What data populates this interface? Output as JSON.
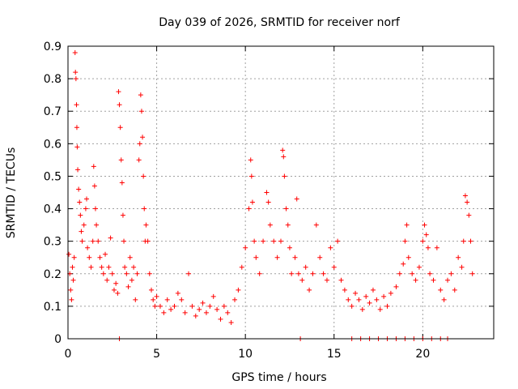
{
  "chart_data": {
    "type": "scatter",
    "title": "Day 039 of 2026, SRMTID for receiver norf",
    "xlabel": "GPS time / hours",
    "ylabel": "SRMTID / TECUs",
    "xlim": [
      0,
      24
    ],
    "ylim": [
      0,
      0.9
    ],
    "xticks": [
      0,
      5,
      10,
      15,
      20
    ],
    "yticks": [
      0,
      0.1,
      0.2,
      0.3,
      0.4,
      0.5,
      0.6,
      0.7,
      0.8,
      0.9
    ],
    "grid": true,
    "marker": "+",
    "colors": {
      "series": "#ff0000",
      "grid": "#a0a0a0",
      "axis": "#000000"
    },
    "series": [
      {
        "name": "SRMTID",
        "points": [
          [
            0.05,
            0.26
          ],
          [
            0.1,
            0.2
          ],
          [
            0.15,
            0.15
          ],
          [
            0.2,
            0.12
          ],
          [
            0.25,
            0.22
          ],
          [
            0.3,
            0.18
          ],
          [
            0.35,
            0.25
          ],
          [
            0.4,
            0.88
          ],
          [
            0.42,
            0.82
          ],
          [
            0.45,
            0.8
          ],
          [
            0.48,
            0.72
          ],
          [
            0.5,
            0.65
          ],
          [
            0.52,
            0.59
          ],
          [
            0.55,
            0.52
          ],
          [
            0.6,
            0.46
          ],
          [
            0.65,
            0.42
          ],
          [
            0.7,
            0.38
          ],
          [
            0.75,
            0.33
          ],
          [
            0.8,
            0.3
          ],
          [
            0.9,
            0.35
          ],
          [
            1.0,
            0.4
          ],
          [
            1.05,
            0.43
          ],
          [
            1.1,
            0.28
          ],
          [
            1.2,
            0.25
          ],
          [
            1.3,
            0.22
          ],
          [
            1.4,
            0.3
          ],
          [
            1.45,
            0.53
          ],
          [
            1.5,
            0.47
          ],
          [
            1.55,
            0.4
          ],
          [
            1.6,
            0.35
          ],
          [
            1.7,
            0.3
          ],
          [
            1.8,
            0.25
          ],
          [
            1.9,
            0.22
          ],
          [
            2.0,
            0.2
          ],
          [
            2.1,
            0.26
          ],
          [
            2.2,
            0.18
          ],
          [
            2.3,
            0.22
          ],
          [
            2.4,
            0.31
          ],
          [
            2.5,
            0.2
          ],
          [
            2.6,
            0.15
          ],
          [
            2.7,
            0.17
          ],
          [
            2.8,
            0.14
          ],
          [
            2.85,
            0.76
          ],
          [
            2.9,
            0.72
          ],
          [
            2.95,
            0.65
          ],
          [
            3.0,
            0.55
          ],
          [
            3.05,
            0.48
          ],
          [
            3.1,
            0.38
          ],
          [
            3.15,
            0.3
          ],
          [
            3.2,
            0.22
          ],
          [
            3.3,
            0.2
          ],
          [
            3.4,
            0.16
          ],
          [
            3.5,
            0.25
          ],
          [
            3.6,
            0.18
          ],
          [
            3.7,
            0.22
          ],
          [
            3.8,
            0.12
          ],
          [
            3.9,
            0.2
          ],
          [
            4.0,
            0.55
          ],
          [
            4.05,
            0.6
          ],
          [
            4.1,
            0.75
          ],
          [
            4.15,
            0.7
          ],
          [
            4.2,
            0.62
          ],
          [
            4.25,
            0.5
          ],
          [
            4.3,
            0.4
          ],
          [
            4.35,
            0.3
          ],
          [
            4.4,
            0.35
          ],
          [
            4.5,
            0.3
          ],
          [
            4.6,
            0.2
          ],
          [
            4.7,
            0.15
          ],
          [
            4.8,
            0.12
          ],
          [
            4.9,
            0.1
          ],
          [
            5.0,
            0.13
          ],
          [
            5.2,
            0.1
          ],
          [
            5.4,
            0.08
          ],
          [
            5.6,
            0.12
          ],
          [
            5.8,
            0.09
          ],
          [
            6.0,
            0.1
          ],
          [
            6.2,
            0.14
          ],
          [
            6.4,
            0.12
          ],
          [
            6.6,
            0.08
          ],
          [
            6.8,
            0.2
          ],
          [
            7.0,
            0.1
          ],
          [
            7.2,
            0.07
          ],
          [
            7.4,
            0.09
          ],
          [
            7.6,
            0.11
          ],
          [
            7.8,
            0.08
          ],
          [
            8.0,
            0.1
          ],
          [
            8.2,
            0.13
          ],
          [
            8.4,
            0.09
          ],
          [
            8.6,
            0.06
          ],
          [
            8.8,
            0.1
          ],
          [
            9.0,
            0.08
          ],
          [
            9.2,
            0.05
          ],
          [
            9.4,
            0.12
          ],
          [
            9.6,
            0.15
          ],
          [
            9.8,
            0.22
          ],
          [
            10.0,
            0.28
          ],
          [
            10.2,
            0.4
          ],
          [
            10.3,
            0.55
          ],
          [
            10.35,
            0.5
          ],
          [
            10.4,
            0.42
          ],
          [
            10.5,
            0.3
          ],
          [
            10.6,
            0.25
          ],
          [
            10.8,
            0.2
          ],
          [
            11.0,
            0.3
          ],
          [
            11.2,
            0.45
          ],
          [
            11.3,
            0.42
          ],
          [
            11.4,
            0.35
          ],
          [
            11.6,
            0.3
          ],
          [
            11.8,
            0.25
          ],
          [
            12.0,
            0.3
          ],
          [
            12.1,
            0.58
          ],
          [
            12.15,
            0.56
          ],
          [
            12.2,
            0.5
          ],
          [
            12.3,
            0.4
          ],
          [
            12.4,
            0.35
          ],
          [
            12.5,
            0.28
          ],
          [
            12.6,
            0.2
          ],
          [
            12.8,
            0.25
          ],
          [
            12.9,
            0.43
          ],
          [
            13.0,
            0.2
          ],
          [
            13.2,
            0.18
          ],
          [
            13.4,
            0.22
          ],
          [
            13.6,
            0.15
          ],
          [
            13.8,
            0.2
          ],
          [
            14.0,
            0.35
          ],
          [
            14.2,
            0.25
          ],
          [
            14.4,
            0.2
          ],
          [
            14.6,
            0.18
          ],
          [
            14.8,
            0.28
          ],
          [
            15.0,
            0.22
          ],
          [
            15.2,
            0.3
          ],
          [
            15.4,
            0.18
          ],
          [
            15.6,
            0.15
          ],
          [
            15.8,
            0.12
          ],
          [
            16.0,
            0.1
          ],
          [
            16.2,
            0.14
          ],
          [
            16.4,
            0.12
          ],
          [
            16.6,
            0.09
          ],
          [
            16.8,
            0.13
          ],
          [
            17.0,
            0.11
          ],
          [
            17.2,
            0.15
          ],
          [
            17.4,
            0.12
          ],
          [
            17.6,
            0.09
          ],
          [
            17.8,
            0.13
          ],
          [
            18.0,
            0.1
          ],
          [
            18.2,
            0.14
          ],
          [
            18.5,
            0.16
          ],
          [
            18.7,
            0.2
          ],
          [
            18.9,
            0.23
          ],
          [
            19.0,
            0.3
          ],
          [
            19.1,
            0.35
          ],
          [
            19.2,
            0.25
          ],
          [
            19.4,
            0.2
          ],
          [
            19.6,
            0.18
          ],
          [
            19.8,
            0.22
          ],
          [
            20.0,
            0.3
          ],
          [
            20.1,
            0.35
          ],
          [
            20.2,
            0.32
          ],
          [
            20.3,
            0.28
          ],
          [
            20.4,
            0.2
          ],
          [
            20.6,
            0.18
          ],
          [
            20.8,
            0.28
          ],
          [
            21.0,
            0.15
          ],
          [
            21.2,
            0.12
          ],
          [
            21.4,
            0.18
          ],
          [
            21.6,
            0.2
          ],
          [
            21.8,
            0.15
          ],
          [
            22.0,
            0.25
          ],
          [
            22.2,
            0.22
          ],
          [
            22.3,
            0.3
          ],
          [
            22.4,
            0.44
          ],
          [
            22.5,
            0.42
          ],
          [
            22.6,
            0.38
          ],
          [
            22.7,
            0.3
          ],
          [
            22.8,
            0.2
          ],
          [
            2.9,
            0.0
          ],
          [
            13.1,
            0.0
          ],
          [
            16.0,
            0.0
          ],
          [
            16.5,
            0.0
          ],
          [
            17.0,
            0.0
          ],
          [
            17.5,
            0.0
          ],
          [
            18.0,
            0.0
          ],
          [
            18.5,
            0.0
          ],
          [
            19.0,
            0.0
          ],
          [
            19.5,
            0.0
          ],
          [
            20.0,
            0.0
          ],
          [
            20.5,
            0.0
          ],
          [
            21.0,
            0.0
          ],
          [
            21.4,
            0.0
          ]
        ]
      }
    ]
  }
}
